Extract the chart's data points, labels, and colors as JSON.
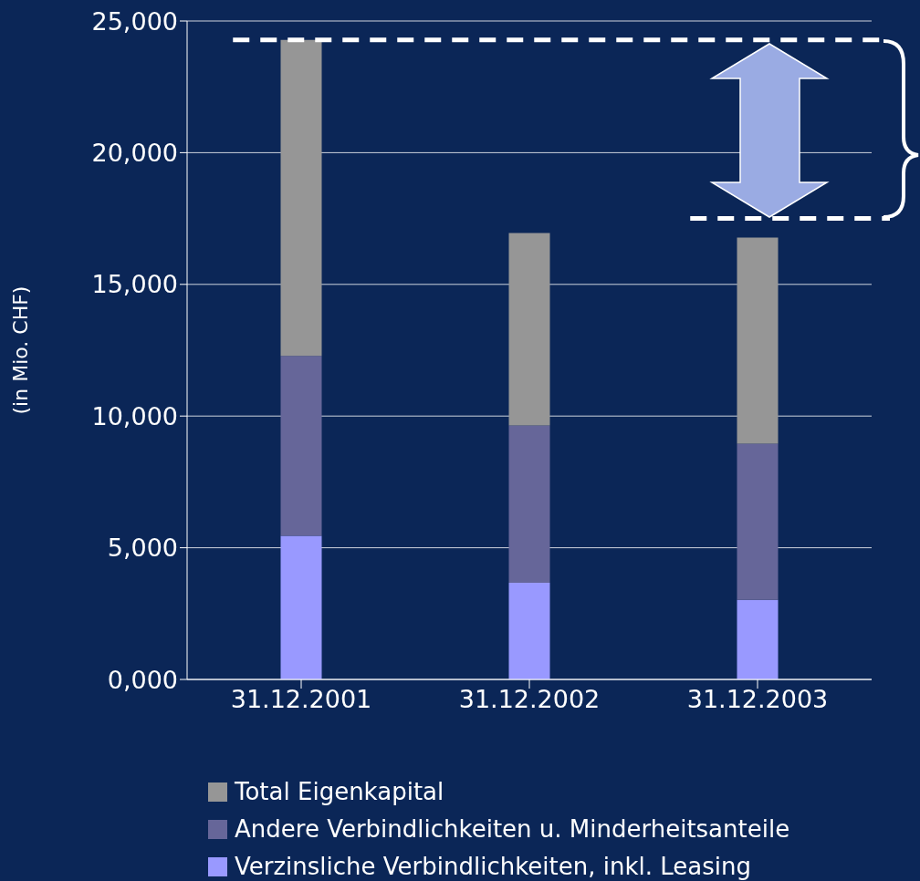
{
  "chart_data": {
    "type": "bar",
    "stacked": true,
    "ylabel": "(in Mio. CHF)",
    "categories": [
      "31.12.2001",
      "31.12.2002",
      "31.12.2003"
    ],
    "series": [
      {
        "name": "Verzinsliche Verbindlichkeiten, inkl. Leasing",
        "color": "#9999ff",
        "values": [
          5450,
          3670,
          3020
        ]
      },
      {
        "name": "Andere Verbindlichkeiten u. Minderheitsanteile",
        "color": "#666699",
        "values": [
          6830,
          5970,
          5930
        ]
      },
      {
        "name": "Total Eigenkapital",
        "color": "#969696",
        "values": [
          12000,
          7310,
          7830
        ]
      }
    ],
    "ylim": [
      0,
      25000
    ],
    "yticks": [
      {
        "value": 0,
        "label": "0,000"
      },
      {
        "value": 5000,
        "label": "5,000"
      },
      {
        "value": 10000,
        "label": "10,000"
      },
      {
        "value": 15000,
        "label": "15,000"
      },
      {
        "value": 20000,
        "label": "20,000"
      },
      {
        "value": 25000,
        "label": "25,000"
      }
    ],
    "ref_lines": [
      {
        "axis": "y",
        "value": 24280,
        "color": "#ffffff",
        "line_style": "dashed"
      },
      {
        "axis": "y",
        "value": 17500,
        "color": "#ffffff",
        "line_style": "dashed"
      }
    ],
    "grid": "y",
    "legend": "bottom"
  }
}
